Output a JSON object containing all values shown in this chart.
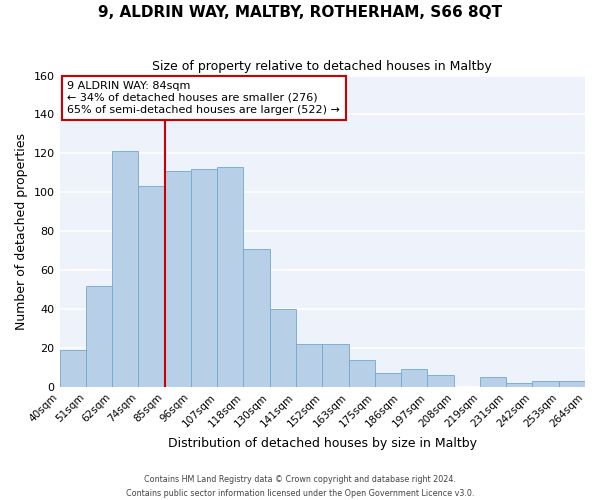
{
  "title": "9, ALDRIN WAY, MALTBY, ROTHERHAM, S66 8QT",
  "subtitle": "Size of property relative to detached houses in Maltby",
  "xlabel": "Distribution of detached houses by size in Maltby",
  "ylabel": "Number of detached properties",
  "bin_labels": [
    "40sqm",
    "51sqm",
    "62sqm",
    "74sqm",
    "85sqm",
    "96sqm",
    "107sqm",
    "118sqm",
    "130sqm",
    "141sqm",
    "152sqm",
    "163sqm",
    "175sqm",
    "186sqm",
    "197sqm",
    "208sqm",
    "219sqm",
    "231sqm",
    "242sqm",
    "253sqm",
    "264sqm"
  ],
  "bar_values": [
    19,
    52,
    121,
    103,
    111,
    112,
    113,
    71,
    40,
    22,
    22,
    14,
    7,
    9,
    6,
    0,
    5,
    2,
    3,
    3
  ],
  "bar_color": "#b8cfe8",
  "bar_edge_color": "#6fa8d0",
  "vline_color": "#cc0000",
  "ylim": [
    0,
    160
  ],
  "yticks": [
    0,
    20,
    40,
    60,
    80,
    100,
    120,
    140,
    160
  ],
  "annotation_text": "9 ALDRIN WAY: 84sqm\n← 34% of detached houses are smaller (276)\n65% of semi-detached houses are larger (522) →",
  "annotation_box_color": "white",
  "annotation_box_edgecolor": "#cc0000",
  "footer_line1": "Contains HM Land Registry data © Crown copyright and database right 2024.",
  "footer_line2": "Contains public sector information licensed under the Open Government Licence v3.0."
}
